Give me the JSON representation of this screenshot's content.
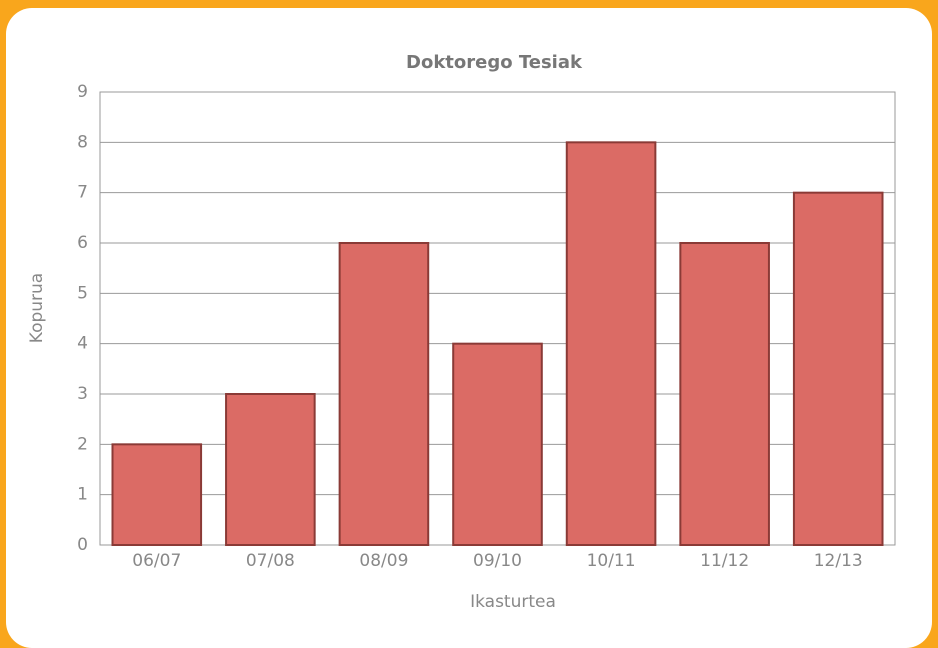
{
  "chart_data": {
    "type": "bar",
    "title": "Doktorego Tesiak",
    "xlabel": "Ikasturtea",
    "ylabel": "Kopurua",
    "categories": [
      "06/07",
      "07/08",
      "08/09",
      "09/10",
      "10/11",
      "11/12",
      "12/13"
    ],
    "values": [
      2,
      3,
      6,
      4,
      8,
      6,
      7
    ],
    "color": "#db6b65",
    "ylim": [
      0,
      9
    ],
    "yticks": [
      0,
      1,
      2,
      3,
      4,
      5,
      6,
      7,
      8,
      9
    ],
    "grid": true
  }
}
